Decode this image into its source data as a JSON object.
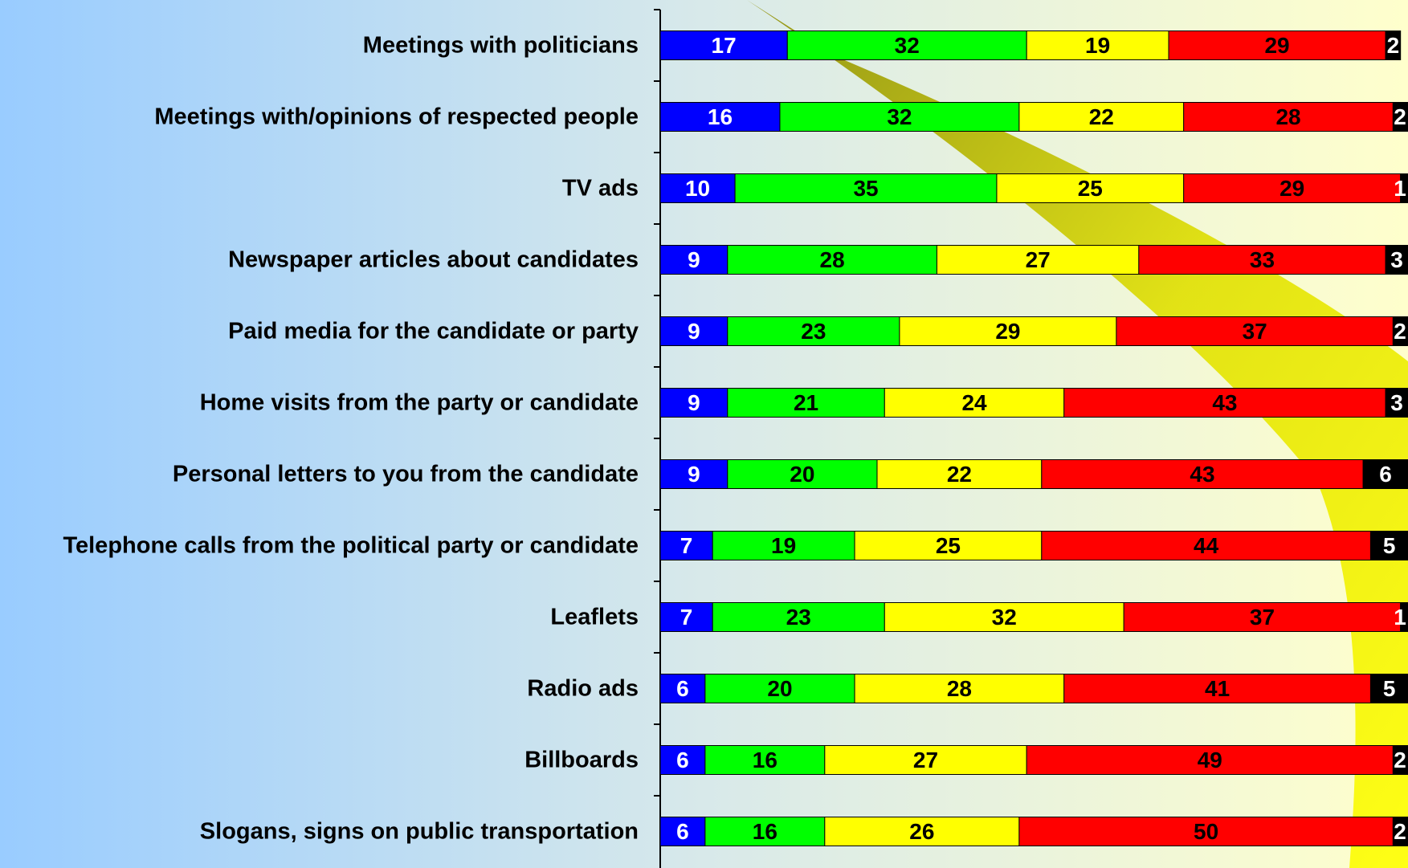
{
  "chart_data": {
    "type": "stacked-bar-horizontal",
    "categories": [
      "Meetings with politicians",
      "Meetings with/opinions of respected people",
      "TV ads",
      "Newspaper articles about candidates",
      "Paid media for the candidate or party",
      "Home visits from the party or candidate",
      "Personal letters to you from the candidate",
      "Telephone calls from the political party or candidate",
      "Leaflets",
      "Radio ads",
      "Billboards",
      "Slogans, signs on public transportation"
    ],
    "series": [
      {
        "color": "#0000ff",
        "values": [
          17,
          16,
          10,
          9,
          9,
          9,
          9,
          7,
          7,
          6,
          6,
          6
        ]
      },
      {
        "color": "#00ff00",
        "values": [
          32,
          32,
          35,
          28,
          23,
          21,
          20,
          19,
          23,
          20,
          16,
          16
        ]
      },
      {
        "color": "#ffff00",
        "values": [
          19,
          22,
          25,
          27,
          29,
          24,
          22,
          25,
          32,
          28,
          27,
          26
        ]
      },
      {
        "color": "#ff0000",
        "values": [
          29,
          28,
          29,
          33,
          37,
          43,
          43,
          44,
          37,
          41,
          49,
          50
        ]
      },
      {
        "color": "#000000",
        "values": [
          2,
          2,
          1,
          3,
          2,
          3,
          6,
          5,
          1,
          5,
          2,
          2
        ]
      }
    ],
    "xlim": [
      0,
      100
    ]
  }
}
